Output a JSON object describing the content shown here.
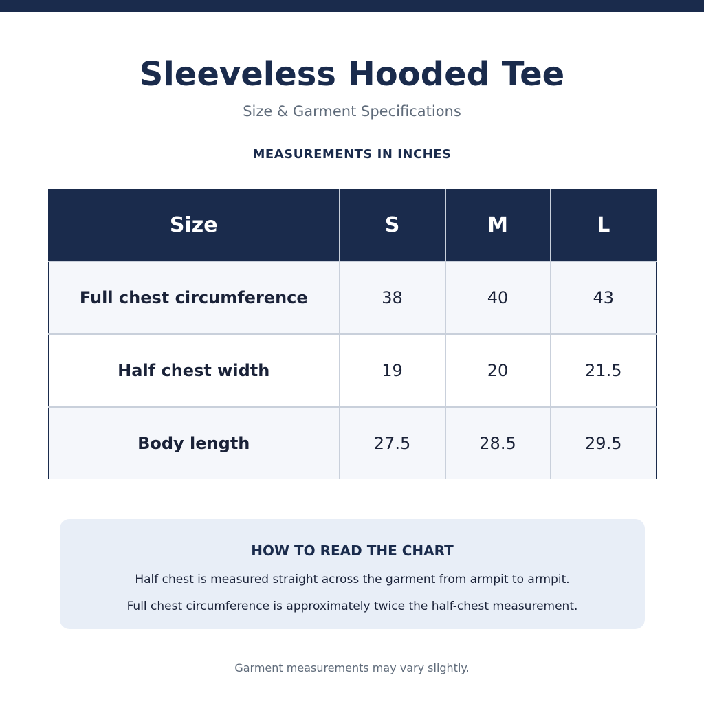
{
  "header": {
    "title": "Sleeveless Hooded Tee",
    "subtitle": "Size & Garment Specifications",
    "units_label": "MEASUREMENTS IN INCHES"
  },
  "table": {
    "columns": [
      "Size",
      "S",
      "M",
      "L"
    ],
    "rows": [
      [
        "Full chest circumference",
        38,
        40,
        43
      ],
      [
        "Half chest width",
        19,
        20,
        21.5
      ],
      [
        "Body length",
        27.5,
        28.5,
        29.5
      ]
    ]
  },
  "note": {
    "title": "HOW TO READ THE CHART",
    "lines": [
      "Half chest is measured straight across the garment from armpit to armpit.",
      "Full chest circumference is approximately twice the half-chest measurement."
    ]
  },
  "footer": "Garment measurements may vary slightly."
}
